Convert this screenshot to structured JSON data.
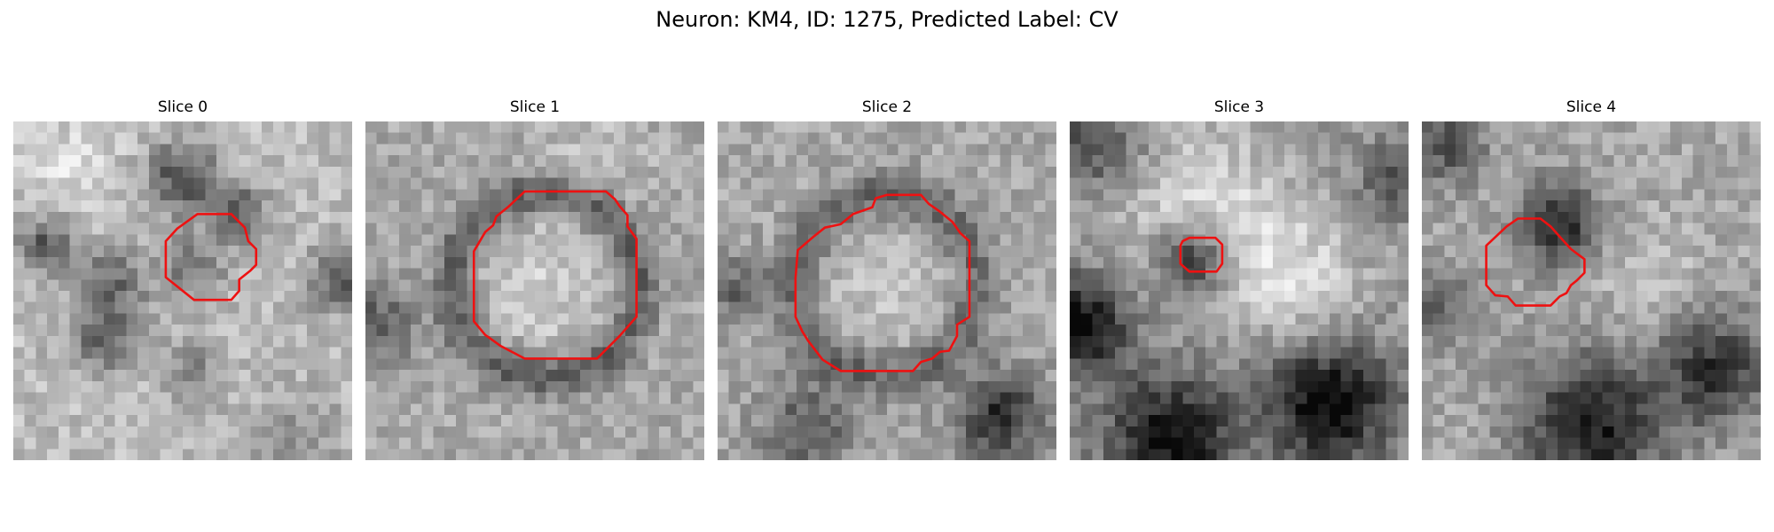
{
  "figure": {
    "title": "Neuron: KM4, ID: 1275, Predicted Label: CV"
  },
  "grid_size": 30,
  "contour_color": "#ee1111",
  "panels": [
    {
      "title": "Slice 0"
    },
    {
      "title": "Slice 1"
    },
    {
      "title": "Slice 2"
    },
    {
      "title": "Slice 3"
    },
    {
      "title": "Slice 4"
    }
  ]
}
